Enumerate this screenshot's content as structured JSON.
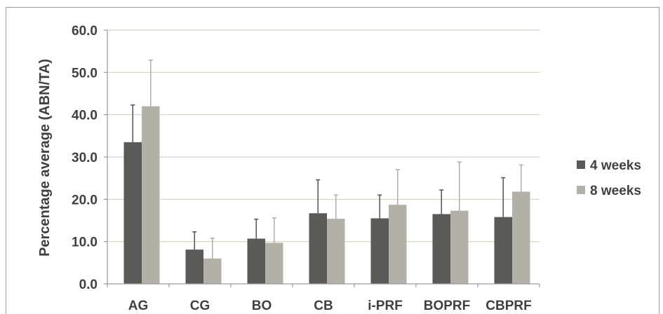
{
  "chart_data": {
    "type": "bar",
    "ylabel": "Percentage average (ABN/TA)",
    "ylim": [
      0,
      60
    ],
    "yticks": [
      "0.0",
      "10.0",
      "20.0",
      "30.0",
      "40.0",
      "50.0",
      "60.0"
    ],
    "categories": [
      "AG",
      "CG",
      "BO",
      "CB",
      "i-PRF",
      "BOPRF",
      "CBPRF"
    ],
    "series": [
      {
        "name": "4 weeks",
        "color": "#5a5a58",
        "values": [
          33.5,
          8.1,
          10.7,
          16.7,
          15.5,
          16.5,
          15.8
        ],
        "error": [
          8.8,
          4.2,
          4.6,
          7.9,
          5.5,
          5.7,
          9.3
        ]
      },
      {
        "name": "8 weeks",
        "color": "#b2b0a7",
        "values": [
          42.0,
          6.0,
          9.7,
          15.4,
          18.7,
          17.3,
          21.8
        ],
        "error": [
          10.9,
          4.8,
          5.9,
          5.6,
          8.3,
          11.5,
          6.3
        ]
      }
    ],
    "grid": true,
    "legend": "right"
  }
}
